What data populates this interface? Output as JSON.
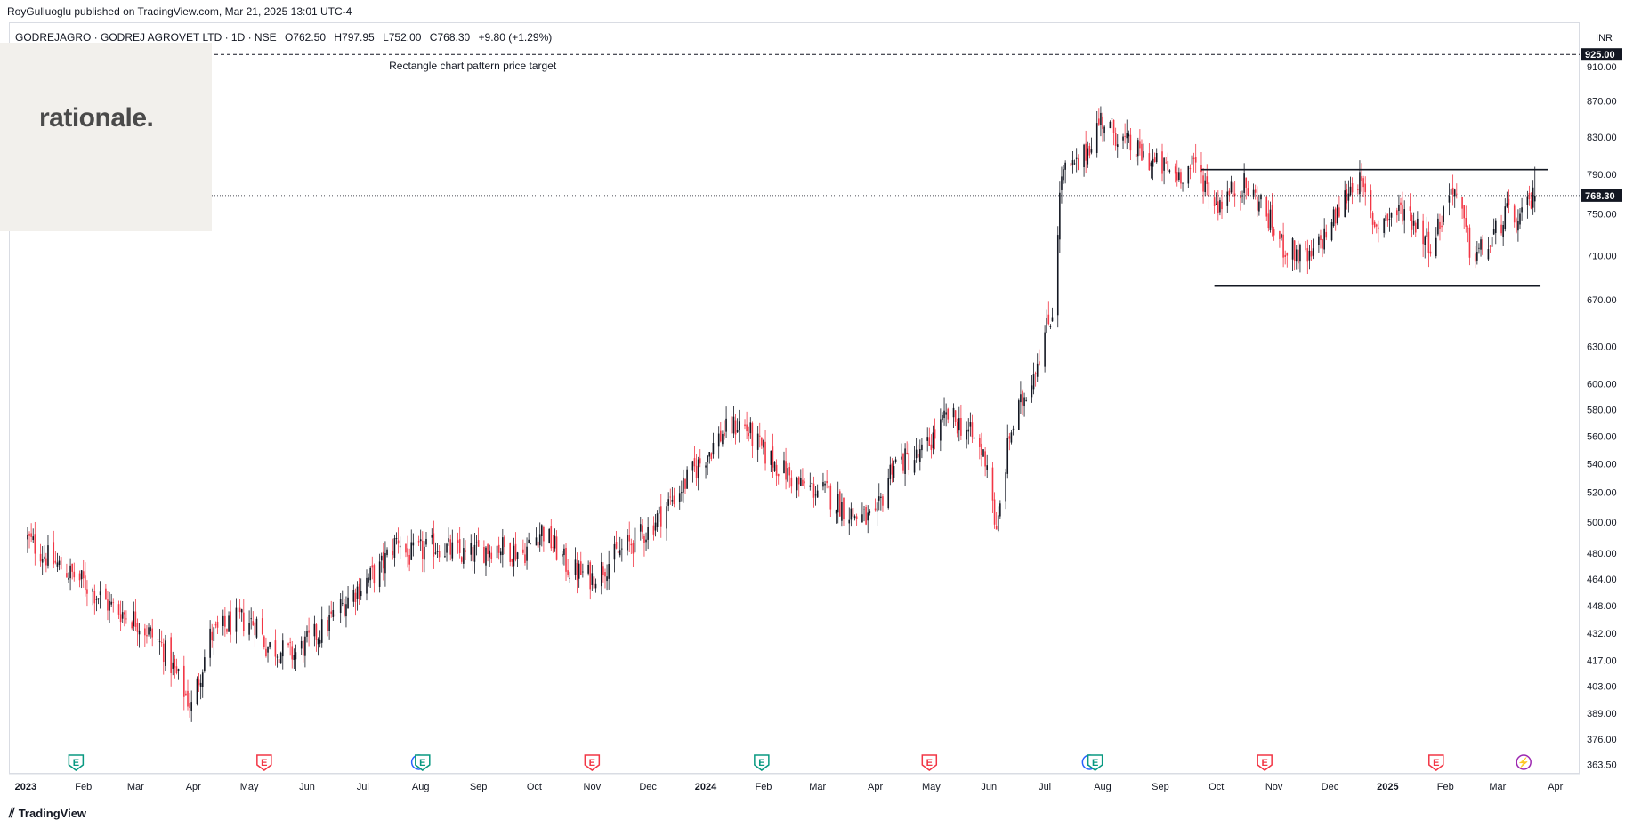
{
  "publisher": "RoyGulluoglu published on TradingView.com, Mar 21, 2025 13:01 UTC-4",
  "symbol": {
    "name": "GODREJAGRO · GODREJ AGROVET LTD · 1D · NSE",
    "open_label": "O",
    "open": "762.50",
    "high_label": "H",
    "high": "797.95",
    "low_label": "L",
    "low": "752.00",
    "close_label": "C",
    "close": "768.30",
    "change": "+9.80 (+1.29%)"
  },
  "watermark_logo": "rationale.",
  "footer": {
    "brand": "TradingView"
  },
  "colors": {
    "up": "#131722",
    "down": "#f23645",
    "event_earnings_red": "#f23645",
    "event_earnings_green": "#089981",
    "dividend_blue": "#2962ff",
    "target_line": "#131722"
  },
  "chart_data": {
    "type": "candlestick",
    "currency": "INR",
    "scale": "log",
    "ylim": [
      360,
      935
    ],
    "y_ticks": [
      910,
      870,
      830,
      790,
      750,
      710,
      670,
      630,
      600,
      580,
      560,
      540,
      520,
      500,
      480,
      464,
      448,
      432,
      417,
      403,
      389,
      376,
      363.5
    ],
    "y_tick_labels": [
      "910.00",
      "870.00",
      "830.00",
      "790.00",
      "750.00",
      "710.00",
      "670.00",
      "630.00",
      "600.00",
      "580.00",
      "560.00",
      "540.00",
      "520.00",
      "500.00",
      "480.00",
      "464.00",
      "448.00",
      "432.00",
      "417.00",
      "403.00",
      "389.00",
      "376.00",
      "363.50"
    ],
    "x_labels": [
      {
        "label": "2023",
        "year": true
      },
      {
        "label": "Feb"
      },
      {
        "label": "Mar"
      },
      {
        "label": "Apr"
      },
      {
        "label": "May"
      },
      {
        "label": "Jun"
      },
      {
        "label": "Jul"
      },
      {
        "label": "Aug"
      },
      {
        "label": "Sep"
      },
      {
        "label": "Oct"
      },
      {
        "label": "Nov"
      },
      {
        "label": "Dec"
      },
      {
        "label": "2024",
        "year": true
      },
      {
        "label": "Feb"
      },
      {
        "label": "Mar"
      },
      {
        "label": "Apr"
      },
      {
        "label": "May"
      },
      {
        "label": "Jun"
      },
      {
        "label": "Jul"
      },
      {
        "label": "Aug"
      },
      {
        "label": "Sep"
      },
      {
        "label": "Oct"
      },
      {
        "label": "Nov"
      },
      {
        "label": "Dec"
      },
      {
        "label": "2025",
        "year": true
      },
      {
        "label": "Feb"
      },
      {
        "label": "Mar"
      },
      {
        "label": "Apr"
      }
    ],
    "current_price": 768.3,
    "current_price_label": "768.30",
    "target_price": 925.0,
    "target_price_label": "925.00",
    "annotation": "Rectangle chart pattern price target",
    "rectangle": {
      "top": 795,
      "bottom": 682,
      "start": "2024-09-23",
      "top_end": "2025-03-28",
      "bottom_start": "2024-09-30",
      "bottom_end": "2025-03-24"
    },
    "price_path": [
      [
        "2023-01-01",
        490
      ],
      [
        "2023-01-15",
        475
      ],
      [
        "2023-02-01",
        462
      ],
      [
        "2023-02-15",
        448
      ],
      [
        "2023-03-01",
        440
      ],
      [
        "2023-03-15",
        425
      ],
      [
        "2023-03-31",
        392
      ],
      [
        "2023-04-10",
        430
      ],
      [
        "2023-04-25",
        440
      ],
      [
        "2023-05-05",
        438
      ],
      [
        "2023-05-10",
        425
      ],
      [
        "2023-05-25",
        420
      ],
      [
        "2023-06-10",
        435
      ],
      [
        "2023-06-25",
        455
      ],
      [
        "2023-07-10",
        470
      ],
      [
        "2023-07-20",
        490
      ],
      [
        "2023-07-25",
        478
      ],
      [
        "2023-08-10",
        485
      ],
      [
        "2023-08-25",
        478
      ],
      [
        "2023-09-10",
        485
      ],
      [
        "2023-09-25",
        480
      ],
      [
        "2023-10-05",
        495
      ],
      [
        "2023-10-20",
        470
      ],
      [
        "2023-11-01",
        465
      ],
      [
        "2023-11-15",
        480
      ],
      [
        "2023-12-01",
        495
      ],
      [
        "2023-12-20",
        525
      ],
      [
        "2024-01-10",
        562
      ],
      [
        "2024-01-20",
        570
      ],
      [
        "2024-02-01",
        548
      ],
      [
        "2024-02-20",
        525
      ],
      [
        "2024-03-05",
        520
      ],
      [
        "2024-03-20",
        505
      ],
      [
        "2024-04-01",
        500
      ],
      [
        "2024-04-10",
        540
      ],
      [
        "2024-04-25",
        545
      ],
      [
        "2024-05-10",
        575
      ],
      [
        "2024-05-20",
        565
      ],
      [
        "2024-06-01",
        540
      ],
      [
        "2024-06-05",
        490
      ],
      [
        "2024-06-12",
        560
      ],
      [
        "2024-06-25",
        610
      ],
      [
        "2024-07-05",
        660
      ],
      [
        "2024-07-10",
        790
      ],
      [
        "2024-07-20",
        800
      ],
      [
        "2024-07-31",
        850
      ],
      [
        "2024-08-15",
        820
      ],
      [
        "2024-08-30",
        800
      ],
      [
        "2024-09-10",
        790
      ],
      [
        "2024-09-20",
        800
      ],
      [
        "2024-10-01",
        760
      ],
      [
        "2024-10-15",
        780
      ],
      [
        "2024-10-25",
        760
      ],
      [
        "2024-11-05",
        720
      ],
      [
        "2024-11-20",
        705
      ],
      [
        "2024-12-05",
        750
      ],
      [
        "2024-12-15",
        790
      ],
      [
        "2024-12-25",
        740
      ],
      [
        "2025-01-10",
        755
      ],
      [
        "2025-01-25",
        720
      ],
      [
        "2025-02-05",
        780
      ],
      [
        "2025-02-15",
        710
      ],
      [
        "2025-02-25",
        720
      ],
      [
        "2025-03-05",
        750
      ],
      [
        "2025-03-12",
        740
      ],
      [
        "2025-03-21",
        768.3
      ]
    ],
    "events": [
      {
        "date": "2023-01-28",
        "type": "E",
        "color": "green"
      },
      {
        "date": "2023-05-09",
        "type": "E",
        "color": "red"
      },
      {
        "date": "2023-07-31",
        "type": "D",
        "color": "blue"
      },
      {
        "date": "2023-08-02",
        "type": "E",
        "color": "green"
      },
      {
        "date": "2023-11-01",
        "type": "E",
        "color": "red"
      },
      {
        "date": "2024-01-31",
        "type": "E",
        "color": "green"
      },
      {
        "date": "2024-04-30",
        "type": "E",
        "color": "red"
      },
      {
        "date": "2024-07-25",
        "type": "D",
        "color": "blue"
      },
      {
        "date": "2024-07-28",
        "type": "E",
        "color": "green"
      },
      {
        "date": "2024-10-27",
        "type": "E",
        "color": "red"
      },
      {
        "date": "2025-01-27",
        "type": "E",
        "color": "red"
      },
      {
        "date": "2025-03-15",
        "type": "⚡",
        "color": "purple"
      }
    ]
  }
}
